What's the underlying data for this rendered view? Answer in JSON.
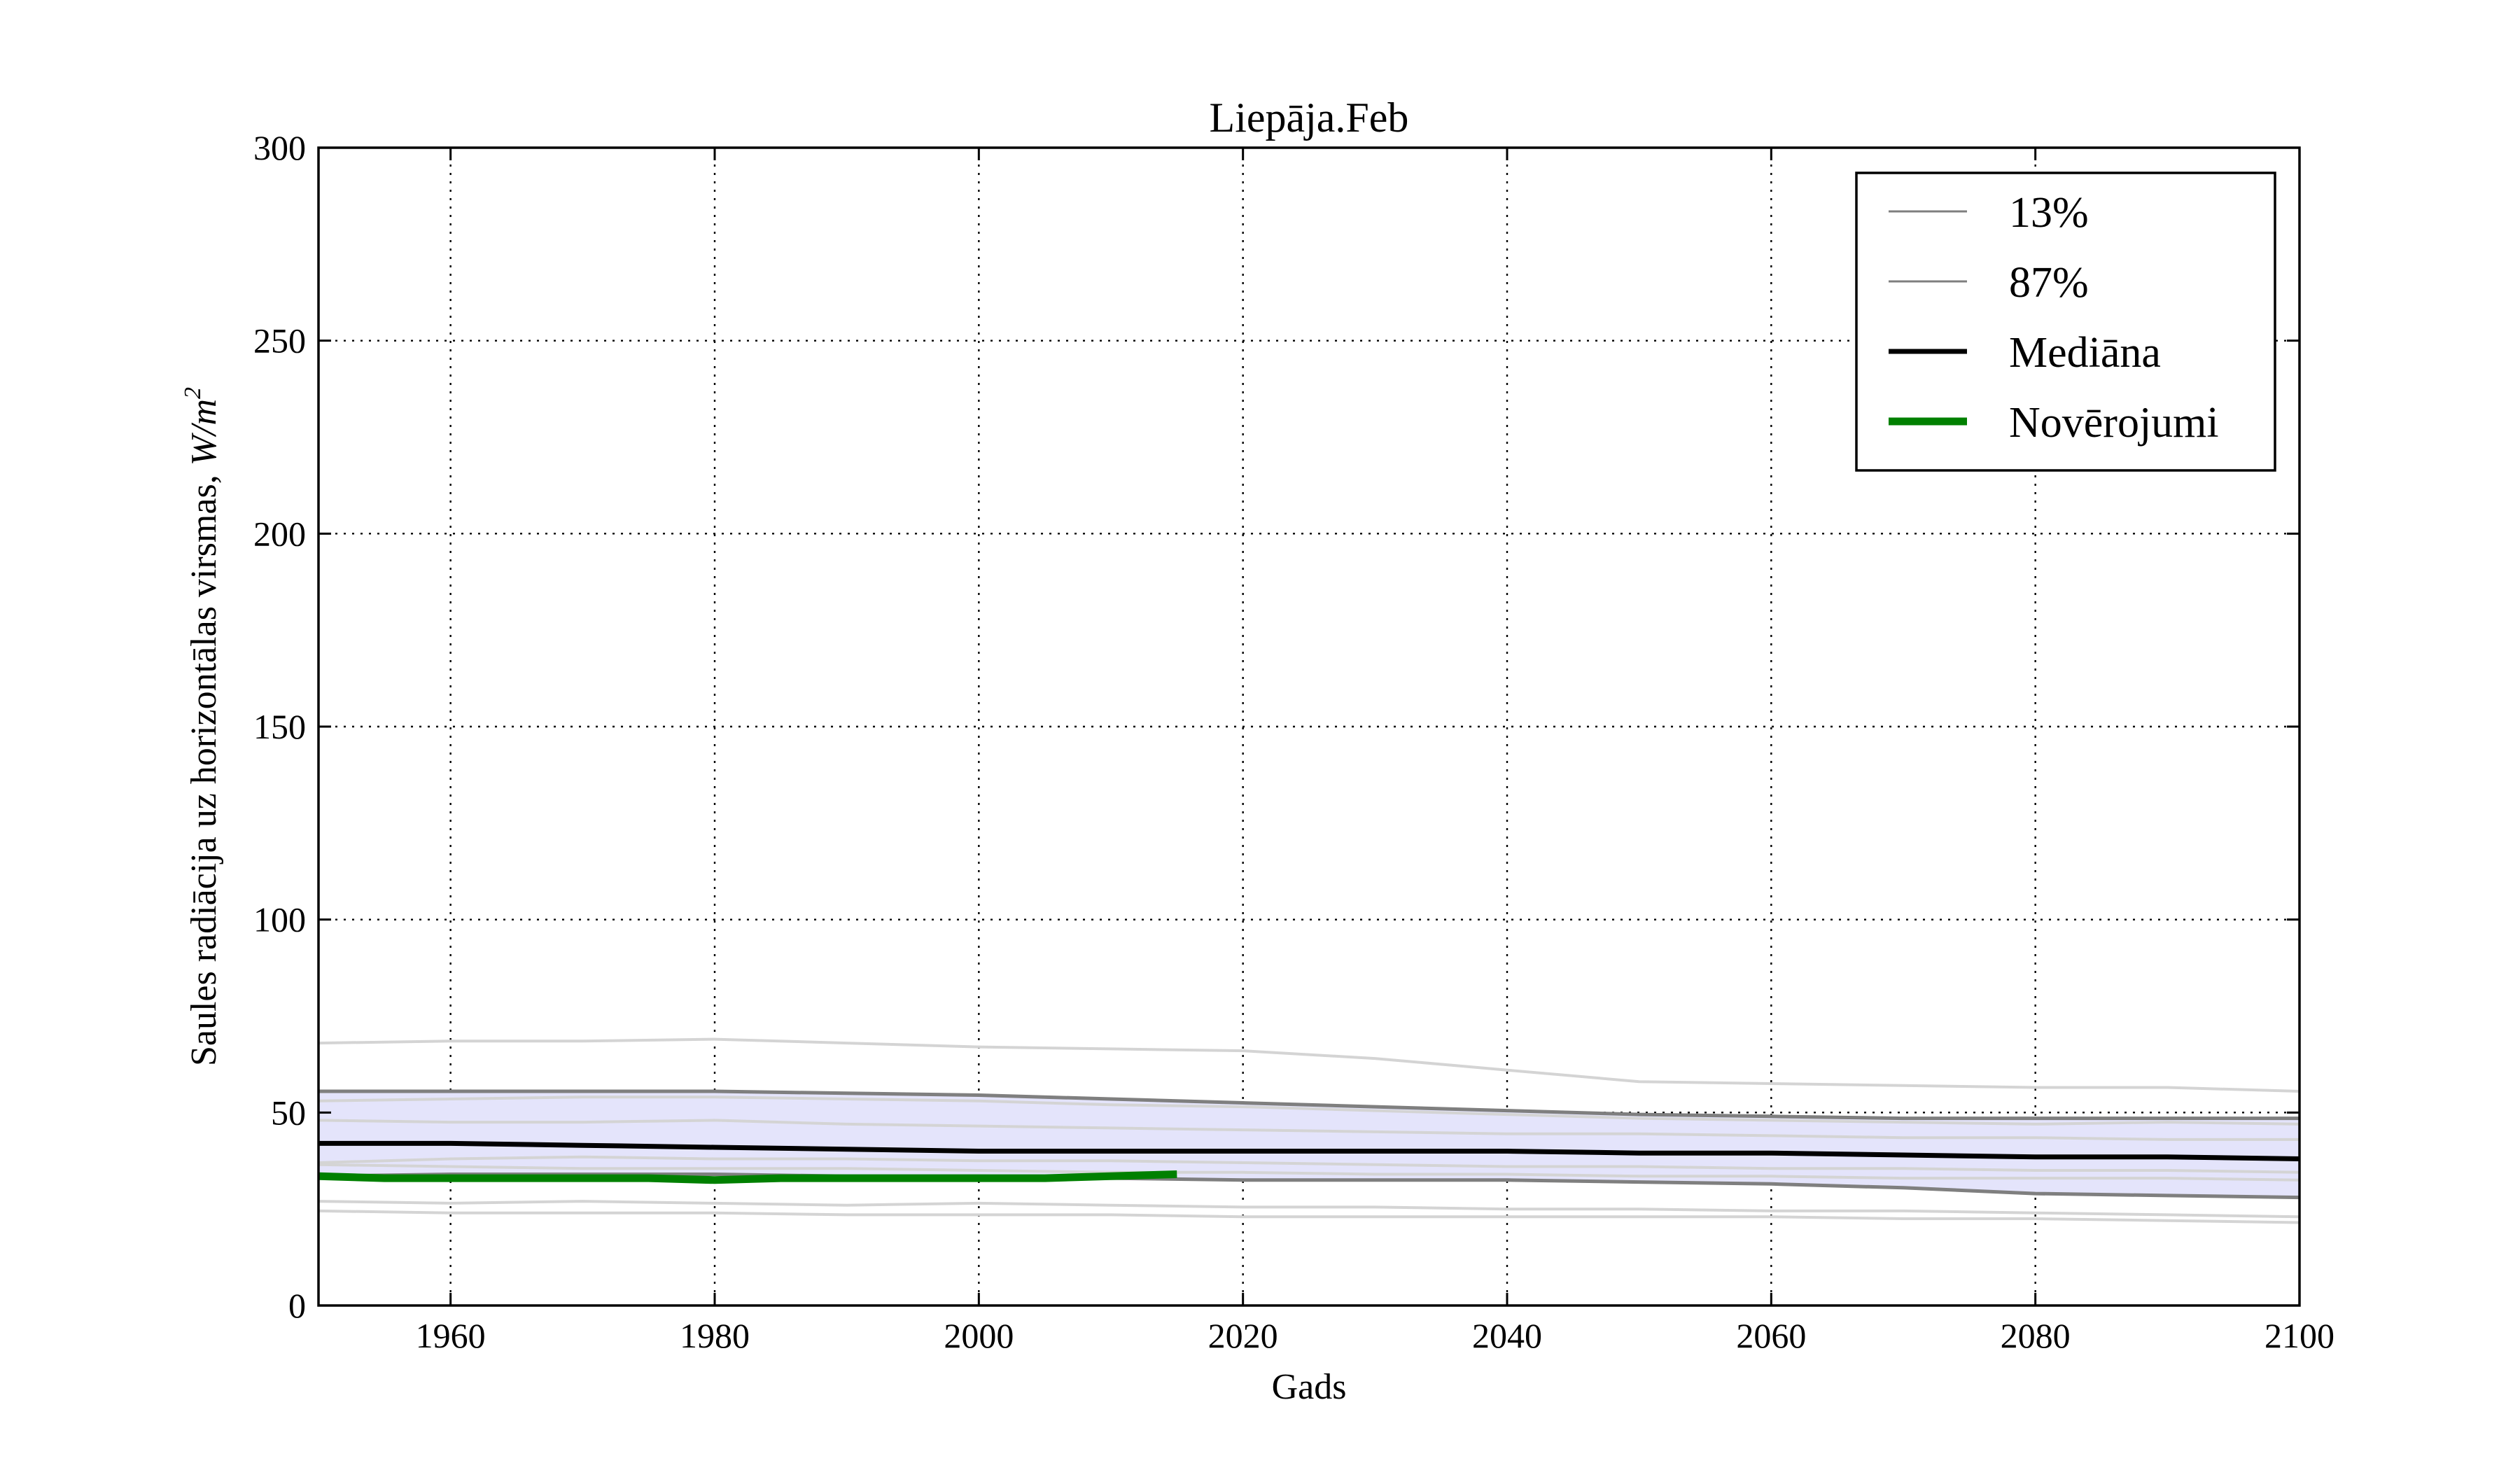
{
  "chart_data": {
    "type": "line",
    "title": "Liepāja.Feb",
    "xlabel": "Gads",
    "ylabel_text": "Saules radiācija uz horizontālas virsmas, ",
    "ylabel_unit_base": "W/m",
    "ylabel_unit_exp": "2",
    "xlim": [
      1950,
      2100
    ],
    "ylim": [
      0,
      300
    ],
    "x_ticks": [
      1960,
      1980,
      2000,
      2020,
      2040,
      2060,
      2080,
      2100
    ],
    "y_ticks": [
      0,
      50,
      100,
      150,
      200,
      250,
      300
    ],
    "grid": true,
    "legend_position": "top-right",
    "legend": [
      {
        "label": "13%",
        "color": "#7f7f7f",
        "style": "thin"
      },
      {
        "label": "87%",
        "color": "#7f7f7f",
        "style": "thin"
      },
      {
        "label": "Mediāna",
        "color": "#000000",
        "style": "medium"
      },
      {
        "label": "Novērojumi",
        "color": "#008000",
        "style": "thick"
      }
    ],
    "band": {
      "fill": "#e4e4fb",
      "x": [
        1950,
        1960,
        1970,
        1980,
        1990,
        2000,
        2010,
        2020,
        2030,
        2040,
        2050,
        2060,
        2070,
        2080,
        2090,
        2100
      ],
      "lower": [
        33.5,
        34,
        34,
        34,
        33.5,
        33.5,
        33,
        32.5,
        32.5,
        32.5,
        32,
        31.5,
        30.5,
        29,
        28.5,
        28
      ],
      "upper": [
        55.5,
        55.5,
        55.5,
        55.5,
        55,
        54.5,
        53.5,
        52.5,
        51.5,
        50.5,
        49.5,
        49,
        48.5,
        48.5,
        48.5,
        48.5
      ]
    },
    "series": [
      {
        "name": "13%",
        "color": "#7f7f7f",
        "width": 5,
        "x": [
          1950,
          1960,
          1970,
          1980,
          1990,
          2000,
          2010,
          2020,
          2030,
          2040,
          2050,
          2060,
          2070,
          2080,
          2090,
          2100
        ],
        "y": [
          33.5,
          34,
          34,
          34,
          33.5,
          33.5,
          33,
          32.5,
          32.5,
          32.5,
          32,
          31.5,
          30.5,
          29,
          28.5,
          28
        ]
      },
      {
        "name": "87%",
        "color": "#7f7f7f",
        "width": 5,
        "x": [
          1950,
          1960,
          1970,
          1980,
          1990,
          2000,
          2010,
          2020,
          2030,
          2040,
          2050,
          2060,
          2070,
          2080,
          2090,
          2100
        ],
        "y": [
          55.5,
          55.5,
          55.5,
          55.5,
          55,
          54.5,
          53.5,
          52.5,
          51.5,
          50.5,
          49.5,
          49,
          48.5,
          48.5,
          48.5,
          48.5
        ]
      },
      {
        "name": "Mediāna",
        "color": "#000000",
        "width": 7,
        "x": [
          1950,
          1960,
          1970,
          1980,
          1990,
          2000,
          2010,
          2020,
          2030,
          2040,
          2050,
          2060,
          2070,
          2080,
          2090,
          2100
        ],
        "y": [
          42,
          42,
          41.5,
          41,
          40.5,
          40,
          40,
          40,
          40,
          40,
          39.5,
          39.5,
          39,
          38.5,
          38.5,
          38
        ]
      },
      {
        "name": "Novērojumi",
        "color": "#008000",
        "width": 11,
        "x": [
          1950,
          1955,
          1960,
          1965,
          1970,
          1975,
          1980,
          1985,
          1990,
          1995,
          2000,
          2005,
          2010,
          2015
        ],
        "y": [
          33.5,
          33,
          33,
          33,
          33,
          33,
          32.5,
          33,
          33,
          33,
          33,
          33,
          33.5,
          34
        ]
      }
    ],
    "ensemble_members": {
      "color": "#d4d4d4",
      "x": [
        1950,
        1960,
        1970,
        1980,
        1990,
        2000,
        2010,
        2020,
        2030,
        2040,
        2050,
        2060,
        2070,
        2080,
        2090,
        2100
      ],
      "lines": [
        [
          68,
          68.5,
          68.5,
          69,
          68,
          67,
          66.5,
          66,
          64,
          61,
          58,
          57.5,
          57,
          56.5,
          56.5,
          55.5
        ],
        [
          53,
          53.5,
          54,
          54,
          53.5,
          53,
          52,
          51.5,
          50.5,
          49.5,
          48.5,
          48,
          47.5,
          47,
          47.5,
          47
        ],
        [
          48,
          47.5,
          47.5,
          48,
          47,
          46.5,
          46,
          45.5,
          45,
          44.5,
          44.5,
          44,
          43.5,
          43.5,
          43,
          43
        ],
        [
          37,
          38,
          38.5,
          38,
          38,
          37.5,
          37.5,
          37,
          36.5,
          36,
          36,
          35.5,
          35.5,
          35,
          35,
          34.5
        ],
        [
          36.5,
          36,
          35.5,
          35.5,
          35.5,
          35,
          34.5,
          34.5,
          34,
          34,
          33.5,
          33.5,
          33,
          33,
          33,
          32.5
        ],
        [
          27,
          26.5,
          27,
          26.5,
          26,
          26.5,
          26,
          25.5,
          25.5,
          25,
          25,
          24.5,
          24.5,
          24,
          23.5,
          23
        ],
        [
          24.5,
          24,
          24,
          24,
          23.5,
          23.5,
          23.5,
          23,
          23,
          23,
          23,
          23,
          22.5,
          22.5,
          22,
          21.5
        ]
      ]
    }
  }
}
